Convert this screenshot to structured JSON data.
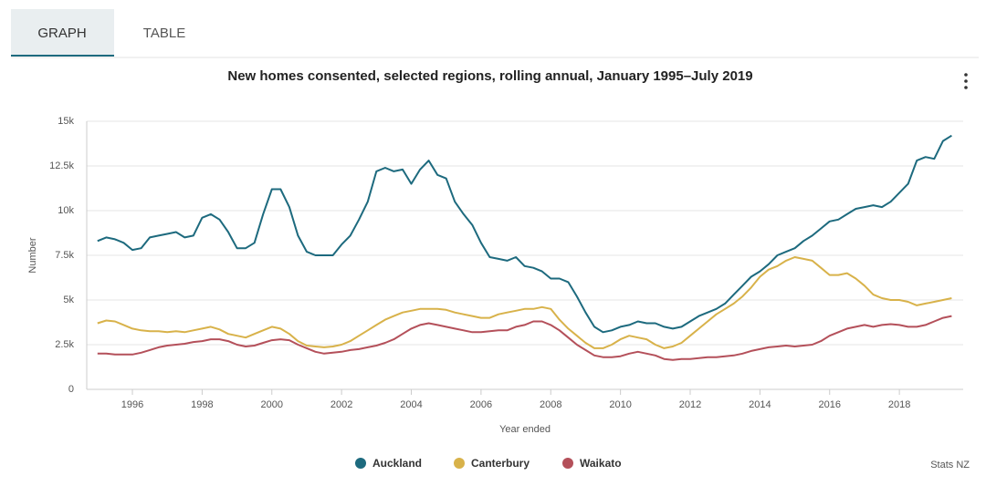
{
  "tabs": [
    "GRAPH",
    "TABLE"
  ],
  "chart_data": {
    "type": "line",
    "title": "New homes consented, selected regions, rolling annual, January 1995–July 2019",
    "x_label": "Year ended",
    "y_label": "Number",
    "source": "Stats NZ",
    "grid": true,
    "legend": "bottom",
    "x": [
      1995,
      1995.25,
      1995.5,
      1995.75,
      1996,
      1996.25,
      1996.5,
      1996.75,
      1997,
      1997.25,
      1997.5,
      1997.75,
      1998,
      1998.25,
      1998.5,
      1998.75,
      1999,
      1999.25,
      1999.5,
      1999.75,
      2000,
      2000.25,
      2000.5,
      2000.75,
      2001,
      2001.25,
      2001.5,
      2001.75,
      2002,
      2002.25,
      2002.5,
      2002.75,
      2003,
      2003.25,
      2003.5,
      2003.75,
      2004,
      2004.25,
      2004.5,
      2004.75,
      2005,
      2005.25,
      2005.5,
      2005.75,
      2006,
      2006.25,
      2006.5,
      2006.75,
      2007,
      2007.25,
      2007.5,
      2007.75,
      2008,
      2008.25,
      2008.5,
      2008.75,
      2009,
      2009.25,
      2009.5,
      2009.75,
      2010,
      2010.25,
      2010.5,
      2010.75,
      2011,
      2011.25,
      2011.5,
      2011.75,
      2012,
      2012.25,
      2012.5,
      2012.75,
      2013,
      2013.25,
      2013.5,
      2013.75,
      2014,
      2014.25,
      2014.5,
      2014.75,
      2015,
      2015.25,
      2015.5,
      2015.75,
      2016,
      2016.25,
      2016.5,
      2016.75,
      2017,
      2017.25,
      2017.5,
      2017.75,
      2018,
      2018.25,
      2018.5,
      2018.75,
      2019,
      2019.25,
      2019.5
    ],
    "xlim": [
      1994.69,
      2019.83
    ],
    "xticks": [
      1996,
      1998,
      2000,
      2002,
      2004,
      2006,
      2008,
      2010,
      2012,
      2014,
      2016,
      2018
    ],
    "ylim": [
      0,
      15000
    ],
    "yticks": [
      0,
      {
        "value": 2500,
        "label": "2.5k"
      },
      {
        "value": 5000,
        "label": "5k"
      },
      {
        "value": 7500,
        "label": "7.5k"
      },
      {
        "value": 10000,
        "label": "10k"
      },
      {
        "value": 12500,
        "label": "12.5k"
      },
      {
        "value": 15000,
        "label": "15k"
      }
    ],
    "series": [
      {
        "name": "Auckland",
        "color": "#1d6a7e",
        "values": [
          8300,
          8500,
          8400,
          8200,
          7800,
          7900,
          8500,
          8600,
          8700,
          8800,
          8500,
          8600,
          9600,
          9800,
          9500,
          8800,
          7900,
          7900,
          8200,
          9800,
          11200,
          11200,
          10200,
          8600,
          7700,
          7500,
          7500,
          7500,
          8100,
          8600,
          9500,
          10500,
          12200,
          12400,
          12200,
          12300,
          11500,
          12300,
          12800,
          12000,
          11800,
          10500,
          9800,
          9200,
          8200,
          7400,
          7300,
          7200,
          7400,
          6900,
          6800,
          6600,
          6200,
          6200,
          6000,
          5200,
          4300,
          3500,
          3200,
          3300,
          3500,
          3600,
          3800,
          3700,
          3700,
          3500,
          3400,
          3500,
          3800,
          4100,
          4300,
          4500,
          4800,
          5300,
          5800,
          6300,
          6600,
          7000,
          7500,
          7700,
          7900,
          8300,
          8600,
          9000,
          9400,
          9500,
          9800,
          10100,
          10200,
          10300,
          10200,
          10500,
          11000,
          11500,
          12800,
          13000,
          12900,
          13900,
          14200
        ]
      },
      {
        "name": "Canterbury",
        "color": "#d8b24a",
        "values": [
          3700,
          3850,
          3800,
          3600,
          3400,
          3300,
          3250,
          3250,
          3200,
          3250,
          3200,
          3300,
          3400,
          3500,
          3350,
          3100,
          3000,
          2900,
          3100,
          3300,
          3500,
          3400,
          3100,
          2700,
          2450,
          2400,
          2350,
          2400,
          2500,
          2700,
          3000,
          3300,
          3600,
          3900,
          4100,
          4300,
          4400,
          4500,
          4500,
          4500,
          4450,
          4300,
          4200,
          4100,
          4000,
          4000,
          4200,
          4300,
          4400,
          4500,
          4500,
          4600,
          4500,
          3900,
          3400,
          3000,
          2600,
          2300,
          2300,
          2500,
          2800,
          3000,
          2900,
          2800,
          2500,
          2300,
          2400,
          2600,
          3000,
          3400,
          3800,
          4200,
          4500,
          4800,
          5200,
          5700,
          6300,
          6700,
          6900,
          7200,
          7400,
          7300,
          7200,
          6800,
          6400,
          6400,
          6500,
          6200,
          5800,
          5300,
          5100,
          5000,
          5000,
          4900,
          4700,
          4800,
          4900,
          5000,
          5100
        ]
      },
      {
        "name": "Waikato",
        "color": "#b4505a",
        "values": [
          2000,
          2000,
          1950,
          1950,
          1950,
          2050,
          2200,
          2350,
          2450,
          2500,
          2550,
          2650,
          2700,
          2800,
          2800,
          2700,
          2500,
          2400,
          2450,
          2600,
          2750,
          2800,
          2750,
          2500,
          2300,
          2100,
          2000,
          2050,
          2100,
          2200,
          2250,
          2350,
          2450,
          2600,
          2800,
          3100,
          3400,
          3600,
          3700,
          3600,
          3500,
          3400,
          3300,
          3200,
          3200,
          3250,
          3300,
          3300,
          3500,
          3600,
          3800,
          3800,
          3600,
          3300,
          2900,
          2500,
          2200,
          1900,
          1800,
          1800,
          1850,
          2000,
          2100,
          2000,
          1900,
          1700,
          1650,
          1700,
          1700,
          1750,
          1800,
          1800,
          1850,
          1900,
          2000,
          2150,
          2250,
          2350,
          2400,
          2450,
          2400,
          2450,
          2500,
          2700,
          3000,
          3200,
          3400,
          3500,
          3600,
          3500,
          3600,
          3650,
          3600,
          3500,
          3500,
          3600,
          3800,
          4000,
          4100
        ]
      }
    ]
  }
}
